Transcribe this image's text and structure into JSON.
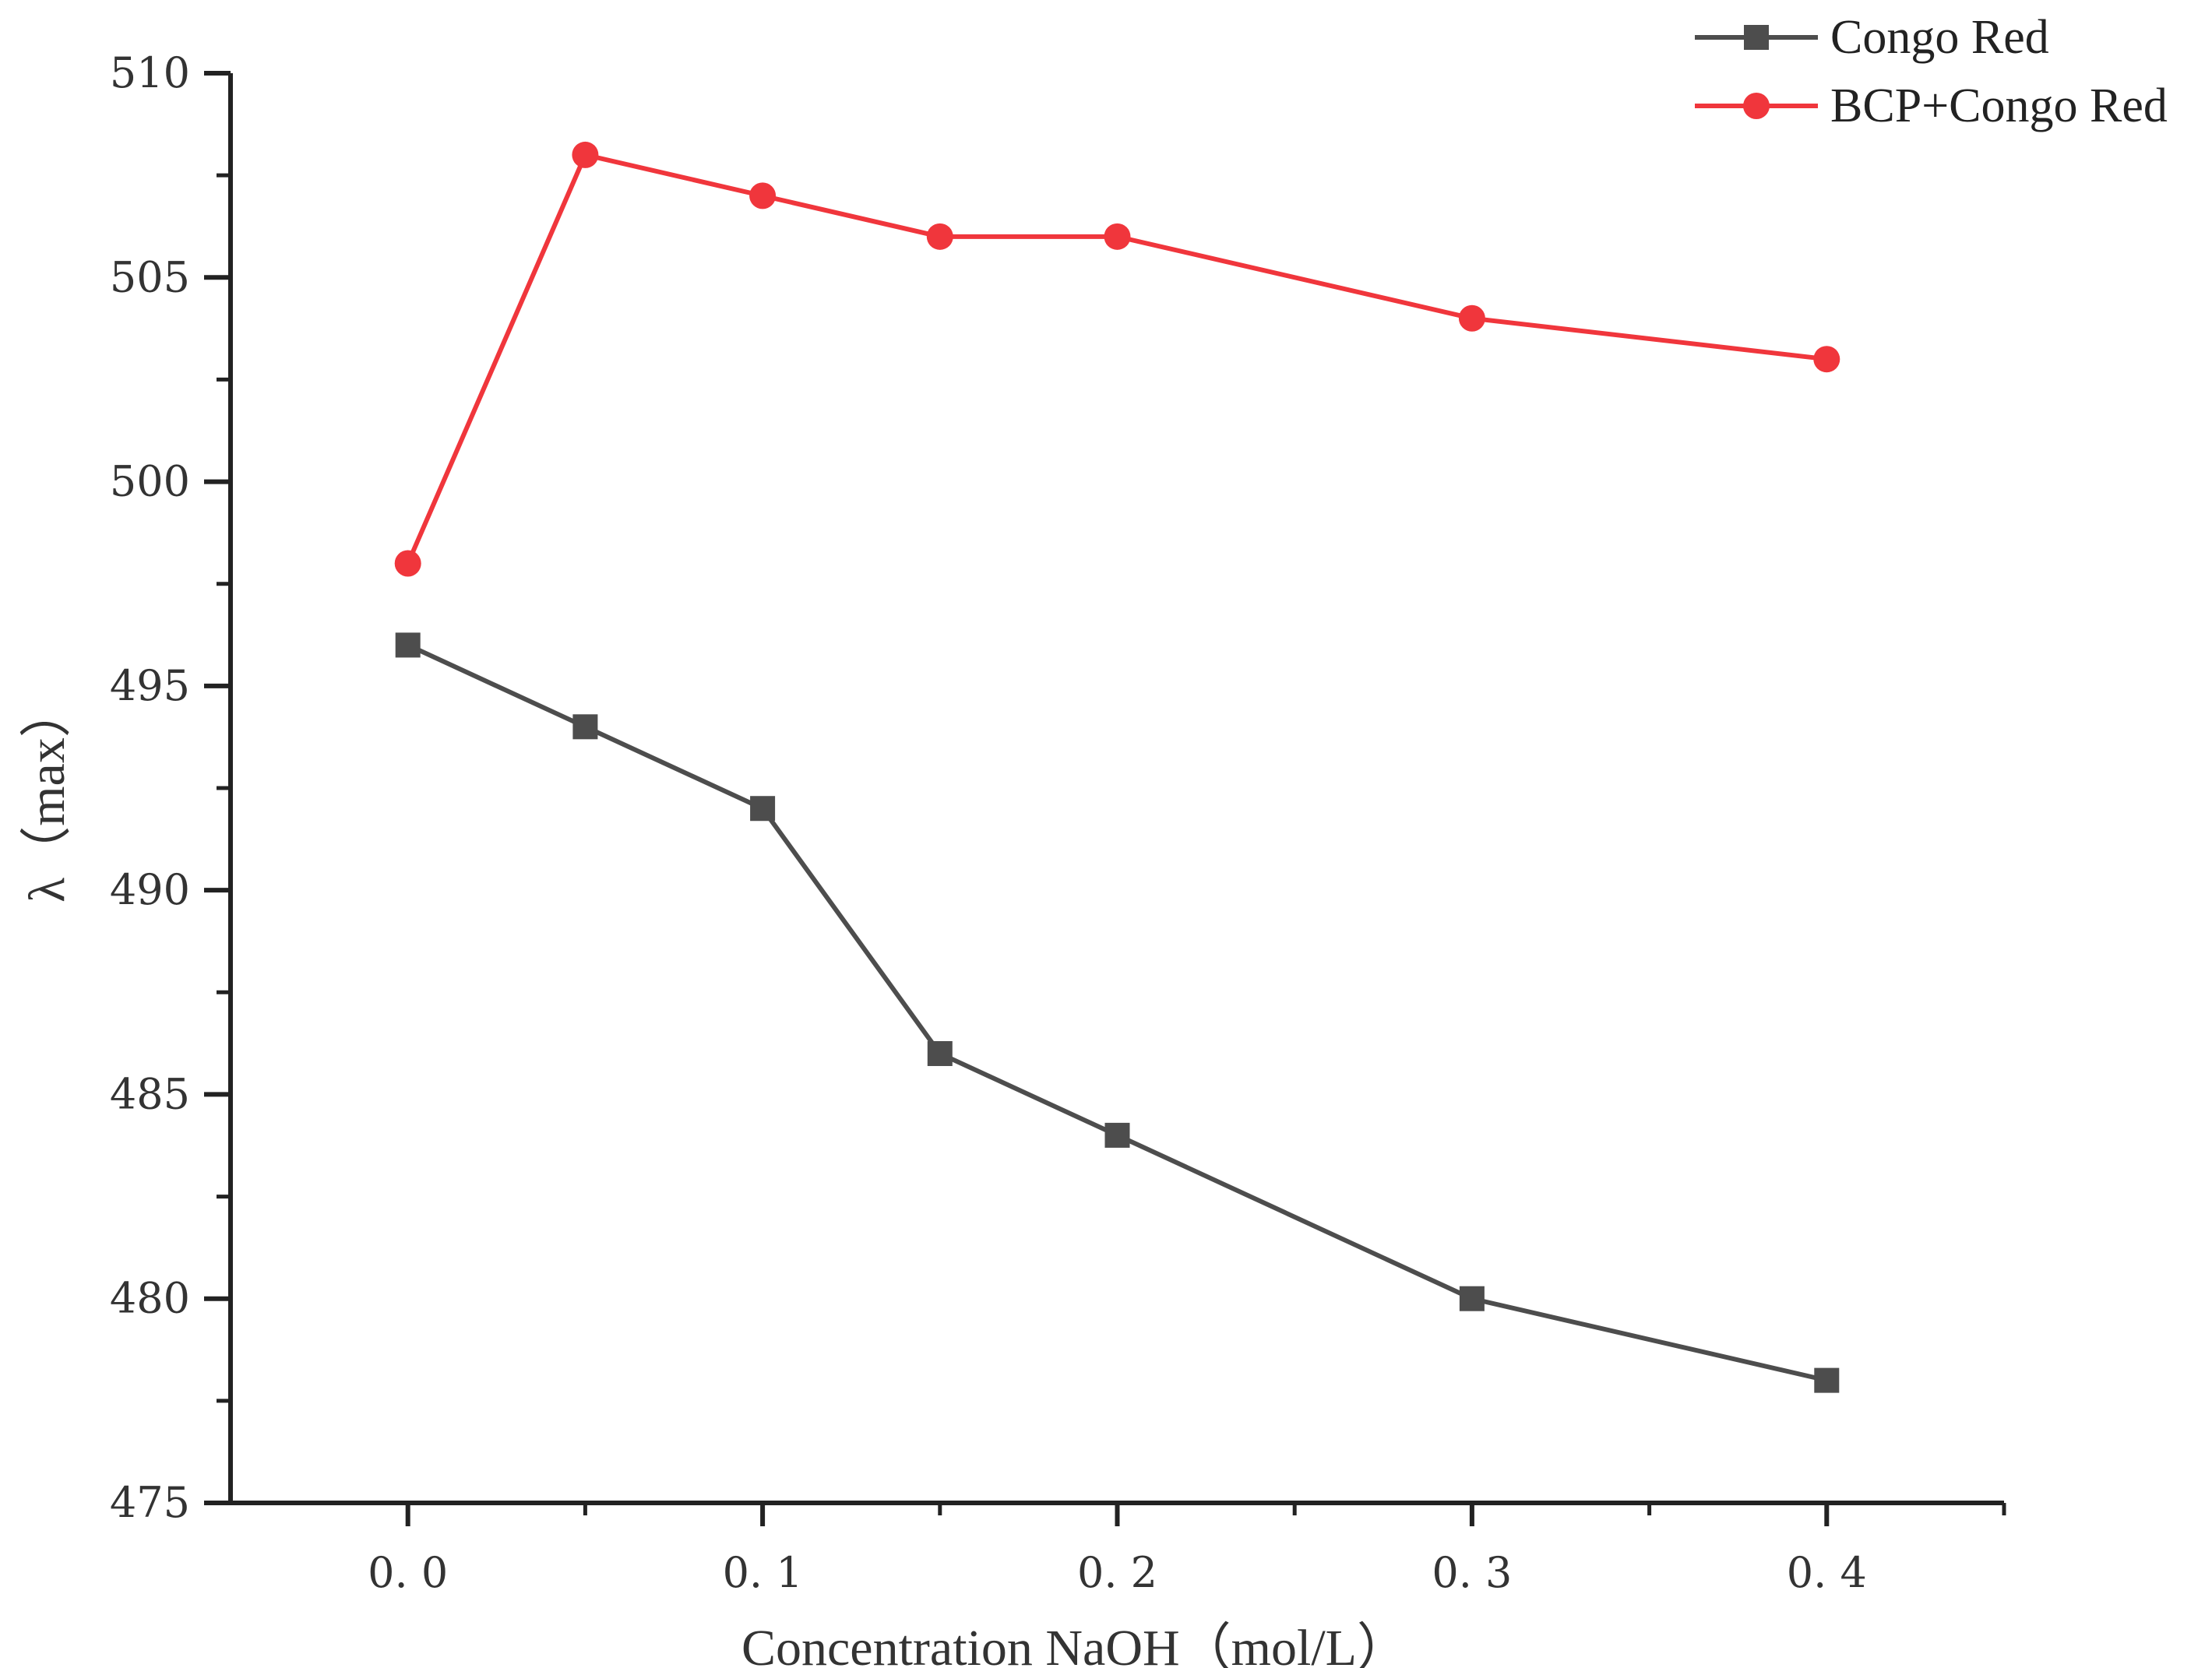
{
  "chart_data": {
    "type": "line",
    "title": "",
    "xlabel": "Concentration NaOH（mol/L）",
    "ylabel": "λ（max）",
    "xlim": [
      -0.05,
      0.45
    ],
    "ylim": [
      475,
      510
    ],
    "x_ticks": [
      0.0,
      0.1,
      0.2,
      0.3,
      0.4
    ],
    "x_tick_labels": [
      "0. 0",
      "0. 1",
      "0. 2",
      "0. 3",
      "0. 4"
    ],
    "y_ticks": [
      475,
      480,
      485,
      490,
      495,
      500,
      505,
      510
    ],
    "y_tick_labels": [
      "475",
      "480",
      "485",
      "490",
      "495",
      "500",
      "505",
      "510"
    ],
    "grid": false,
    "legend_position": "top-right",
    "x": [
      0.0,
      0.05,
      0.1,
      0.15,
      0.2,
      0.3,
      0.4
    ],
    "series": [
      {
        "name": "Congo Red",
        "color": "#4d4d4d",
        "marker": "square",
        "values": [
          496,
          494,
          492,
          486,
          484,
          480,
          478
        ]
      },
      {
        "name": "BCP+Congo Red",
        "color": "#f0363c",
        "marker": "circle",
        "values": [
          498,
          508,
          507,
          506,
          506,
          504,
          503
        ]
      }
    ]
  }
}
